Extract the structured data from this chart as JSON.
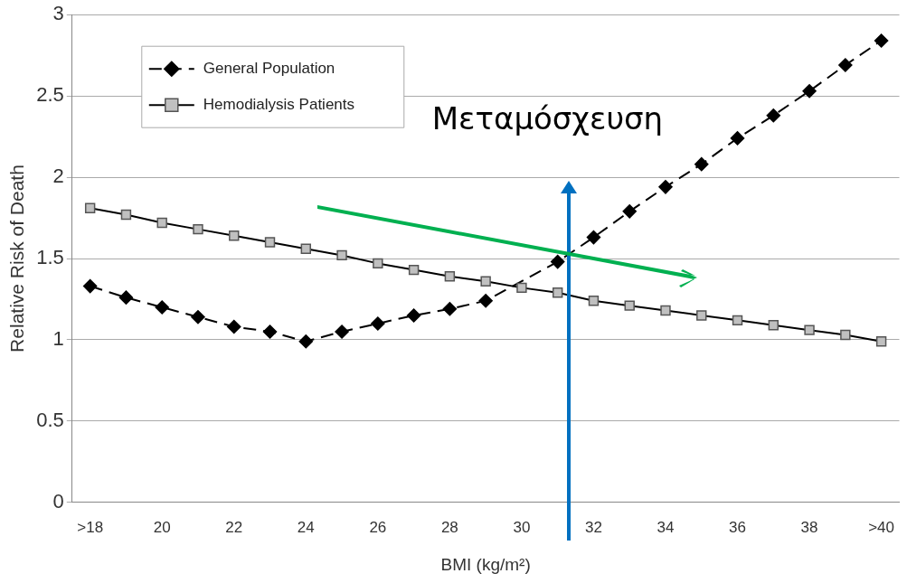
{
  "chart_data": {
    "type": "line",
    "xlabel": "BMI (kg/m²)",
    "ylabel": "Relative Risk of Death",
    "categories": [
      ">18",
      null,
      "20",
      null,
      "22",
      null,
      "24",
      null,
      "26",
      null,
      "28",
      null,
      "30",
      null,
      "32",
      null,
      "34",
      null,
      "36",
      null,
      "38",
      null,
      ">40"
    ],
    "series": [
      {
        "name": "General Population",
        "color": "#000000",
        "marker": "diamond",
        "line_style": "dashed",
        "values": [
          1.33,
          1.26,
          1.2,
          1.14,
          1.08,
          1.05,
          0.99,
          1.05,
          1.1,
          1.15,
          1.19,
          1.24,
          null,
          1.48,
          1.63,
          1.79,
          1.94,
          2.08,
          2.24,
          2.38,
          2.53,
          2.69,
          2.84
        ]
      },
      {
        "name": "Hemodialysis Patients",
        "color": "#000000",
        "marker": "square",
        "line_style": "solid",
        "values": [
          1.81,
          1.77,
          1.72,
          1.68,
          1.64,
          1.6,
          1.56,
          1.52,
          1.47,
          1.43,
          1.39,
          1.36,
          1.32,
          1.29,
          1.24,
          1.21,
          1.18,
          1.15,
          1.12,
          1.09,
          1.06,
          1.03,
          0.99
        ]
      }
    ],
    "ylim": [
      0,
      3
    ],
    "yticks": [
      0,
      0.5,
      1,
      1.5,
      2,
      2.5,
      3
    ],
    "grid": "y",
    "legend": "top left",
    "annotations": [
      "Μεταμόσχευση"
    ]
  }
}
